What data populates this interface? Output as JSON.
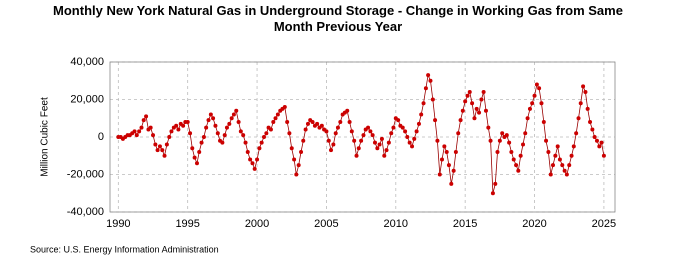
{
  "chart_data": {
    "type": "line",
    "title": "Monthly New York Natural Gas in Underground Storage - Change in Working Gas from Same Month Previous Year",
    "y_label": "Million Cubic Feet",
    "source": "Source: U.S. Energy Information Administration",
    "xlim": [
      1989.4,
      2025.8
    ],
    "xticks": [
      1990,
      1995,
      2000,
      2005,
      2010,
      2015,
      2020,
      2025
    ],
    "ylim": [
      -40000,
      40000
    ],
    "yticks": [
      {
        "value": -40000,
        "label": "-40,000"
      },
      {
        "value": -20000,
        "label": "-20,000"
      },
      0,
      {
        "value": 20000,
        "label": "20,000"
      },
      {
        "value": 40000,
        "label": "40,000"
      }
    ],
    "grid": true,
    "series": [
      {
        "color": "#cc0000",
        "line_color": "#990000",
        "x": [
          1990,
          1990.17,
          1990.33,
          1990.5,
          1990.67,
          1990.83,
          1991,
          1991.17,
          1991.33,
          1991.5,
          1991.67,
          1991.83,
          1992,
          1992.17,
          1992.33,
          1992.5,
          1992.67,
          1992.83,
          1993,
          1993.17,
          1993.33,
          1993.5,
          1993.67,
          1993.83,
          1994,
          1994.17,
          1994.33,
          1994.5,
          1994.67,
          1994.83,
          1995,
          1995.17,
          1995.33,
          1995.5,
          1995.67,
          1995.83,
          1996,
          1996.17,
          1996.33,
          1996.5,
          1996.67,
          1996.83,
          1997,
          1997.17,
          1997.33,
          1997.5,
          1997.67,
          1997.83,
          1998,
          1998.17,
          1998.33,
          1998.5,
          1998.67,
          1998.83,
          1999,
          1999.17,
          1999.33,
          1999.5,
          1999.67,
          1999.83,
          2000,
          2000.17,
          2000.33,
          2000.5,
          2000.67,
          2000.83,
          2001,
          2001.17,
          2001.33,
          2001.5,
          2001.67,
          2001.83,
          2002,
          2002.17,
          2002.33,
          2002.5,
          2002.67,
          2002.83,
          2003,
          2003.17,
          2003.33,
          2003.5,
          2003.67,
          2003.83,
          2004,
          2004.17,
          2004.33,
          2004.5,
          2004.67,
          2004.83,
          2005,
          2005.17,
          2005.33,
          2005.5,
          2005.67,
          2005.83,
          2006,
          2006.17,
          2006.33,
          2006.5,
          2006.67,
          2006.83,
          2007,
          2007.17,
          2007.33,
          2007.5,
          2007.67,
          2007.83,
          2008,
          2008.17,
          2008.33,
          2008.5,
          2008.67,
          2008.83,
          2009,
          2009.17,
          2009.33,
          2009.5,
          2009.67,
          2009.83,
          2010,
          2010.17,
          2010.33,
          2010.5,
          2010.67,
          2010.83,
          2011,
          2011.17,
          2011.33,
          2011.5,
          2011.67,
          2011.83,
          2012,
          2012.17,
          2012.33,
          2012.5,
          2012.67,
          2012.83,
          2013,
          2013.17,
          2013.33,
          2013.5,
          2013.67,
          2013.83,
          2014,
          2014.17,
          2014.33,
          2014.5,
          2014.67,
          2014.83,
          2015,
          2015.17,
          2015.33,
          2015.5,
          2015.67,
          2015.83,
          2016,
          2016.17,
          2016.33,
          2016.5,
          2016.67,
          2016.83,
          2017,
          2017.17,
          2017.33,
          2017.5,
          2017.67,
          2017.83,
          2018,
          2018.17,
          2018.33,
          2018.5,
          2018.67,
          2018.83,
          2019,
          2019.17,
          2019.33,
          2019.5,
          2019.67,
          2019.83,
          2020,
          2020.17,
          2020.33,
          2020.5,
          2020.67,
          2020.83,
          2021,
          2021.17,
          2021.33,
          2021.5,
          2021.67,
          2021.83,
          2022,
          2022.17,
          2022.33,
          2022.5,
          2022.67,
          2022.83,
          2023,
          2023.17,
          2023.33,
          2023.5,
          2023.67,
          2023.83,
          2024,
          2024.17,
          2024.33,
          2024.5,
          2024.67,
          2024.83,
          2025
        ],
        "values": [
          0,
          0,
          -1000,
          0,
          1000,
          1000,
          2000,
          3000,
          1000,
          3000,
          5000,
          9000,
          11000,
          4000,
          5000,
          1000,
          -4000,
          -7000,
          -5000,
          -7000,
          -10000,
          -4000,
          0,
          3000,
          5000,
          6000,
          4000,
          7000,
          6000,
          8000,
          8000,
          2000,
          -6000,
          -11000,
          -14000,
          -8000,
          -3000,
          0,
          5000,
          9000,
          12000,
          10000,
          6000,
          2000,
          -2000,
          -3000,
          1000,
          5000,
          7000,
          10000,
          12000,
          14000,
          8000,
          3000,
          1000,
          -3000,
          -8000,
          -12000,
          -14000,
          -17000,
          -12000,
          -6000,
          -3000,
          0,
          2000,
          5000,
          4000,
          8000,
          10000,
          12000,
          14000,
          15000,
          16000,
          8000,
          2000,
          -6000,
          -12000,
          -20000,
          -15000,
          -8000,
          -2000,
          4000,
          7000,
          9000,
          8000,
          6000,
          7000,
          5000,
          6000,
          4000,
          3000,
          -2000,
          -7000,
          -4000,
          2000,
          5000,
          8000,
          12000,
          13000,
          14000,
          8000,
          3000,
          -2000,
          -10000,
          -6000,
          -2000,
          1000,
          4000,
          5000,
          3000,
          1000,
          -3000,
          -6000,
          -4000,
          -1000,
          -10000,
          -7000,
          -3000,
          2000,
          5000,
          10000,
          9000,
          6000,
          5000,
          3000,
          0,
          -3000,
          -5000,
          -1000,
          3000,
          7000,
          12000,
          18000,
          26000,
          33000,
          30000,
          20000,
          9000,
          -2000,
          -20000,
          -12000,
          -5000,
          -8000,
          -15000,
          -25000,
          -18000,
          -8000,
          2000,
          9000,
          14000,
          19000,
          22000,
          24000,
          18000,
          10000,
          15000,
          13000,
          20000,
          24000,
          14000,
          5000,
          -2000,
          -30000,
          -25000,
          -8000,
          -2000,
          2000,
          0,
          1000,
          -3000,
          -8000,
          -12000,
          -15000,
          -18000,
          -10000,
          -4000,
          2000,
          10000,
          15000,
          18000,
          22000,
          28000,
          26000,
          18000,
          8000,
          -2000,
          -8000,
          -20000,
          -15000,
          -10000,
          -5000,
          -12000,
          -15000,
          -18000,
          -20000,
          -15000,
          -10000,
          -5000,
          2000,
          10000,
          18000,
          27000,
          24000,
          15000,
          8000,
          4000,
          0,
          -2000,
          -5000,
          -3000,
          -10000
        ]
      }
    ]
  }
}
